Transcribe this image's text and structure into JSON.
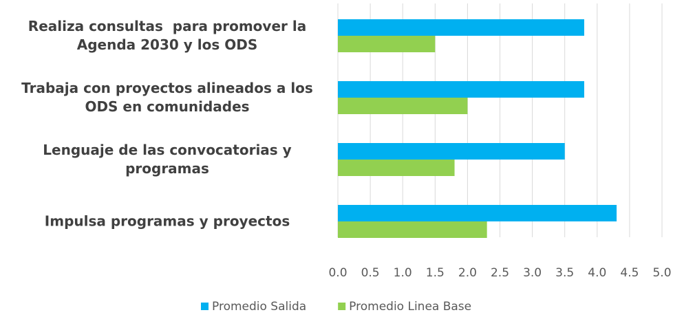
{
  "chart_data": {
    "type": "hbar",
    "categories": [
      "Realiza consultas  para promover la Agenda 2030 y los ODS",
      "Trabaja con proyectos alineados a los ODS en comunidades",
      "Lenguaje de las convocatorias y programas",
      "Impulsa programas y proyectos"
    ],
    "series": [
      {
        "name": "Promedio Salida",
        "color": "#00b0f0",
        "values": [
          3.8,
          3.8,
          3.5,
          4.3
        ]
      },
      {
        "name": "Promedio Linea Base",
        "color": "#92d050",
        "values": [
          1.5,
          2.0,
          1.8,
          2.3
        ]
      }
    ],
    "xlim": [
      0,
      5
    ],
    "xticks": [
      {
        "value": 0,
        "label": "0.0"
      },
      {
        "value": 0.5,
        "label": "0.5"
      },
      {
        "value": 1,
        "label": "1.0"
      },
      {
        "value": 1.5,
        "label": "1.5"
      },
      {
        "value": 2,
        "label": "2.0"
      },
      {
        "value": 2.5,
        "label": "2.5"
      },
      {
        "value": 3,
        "label": "3.0"
      },
      {
        "value": 3.5,
        "label": "3.5"
      },
      {
        "value": 4,
        "label": "4.0"
      },
      {
        "value": 4.5,
        "label": "4.5"
      },
      {
        "value": 5,
        "label": "5.0"
      }
    ],
    "grid": true,
    "legend": "bottom"
  }
}
